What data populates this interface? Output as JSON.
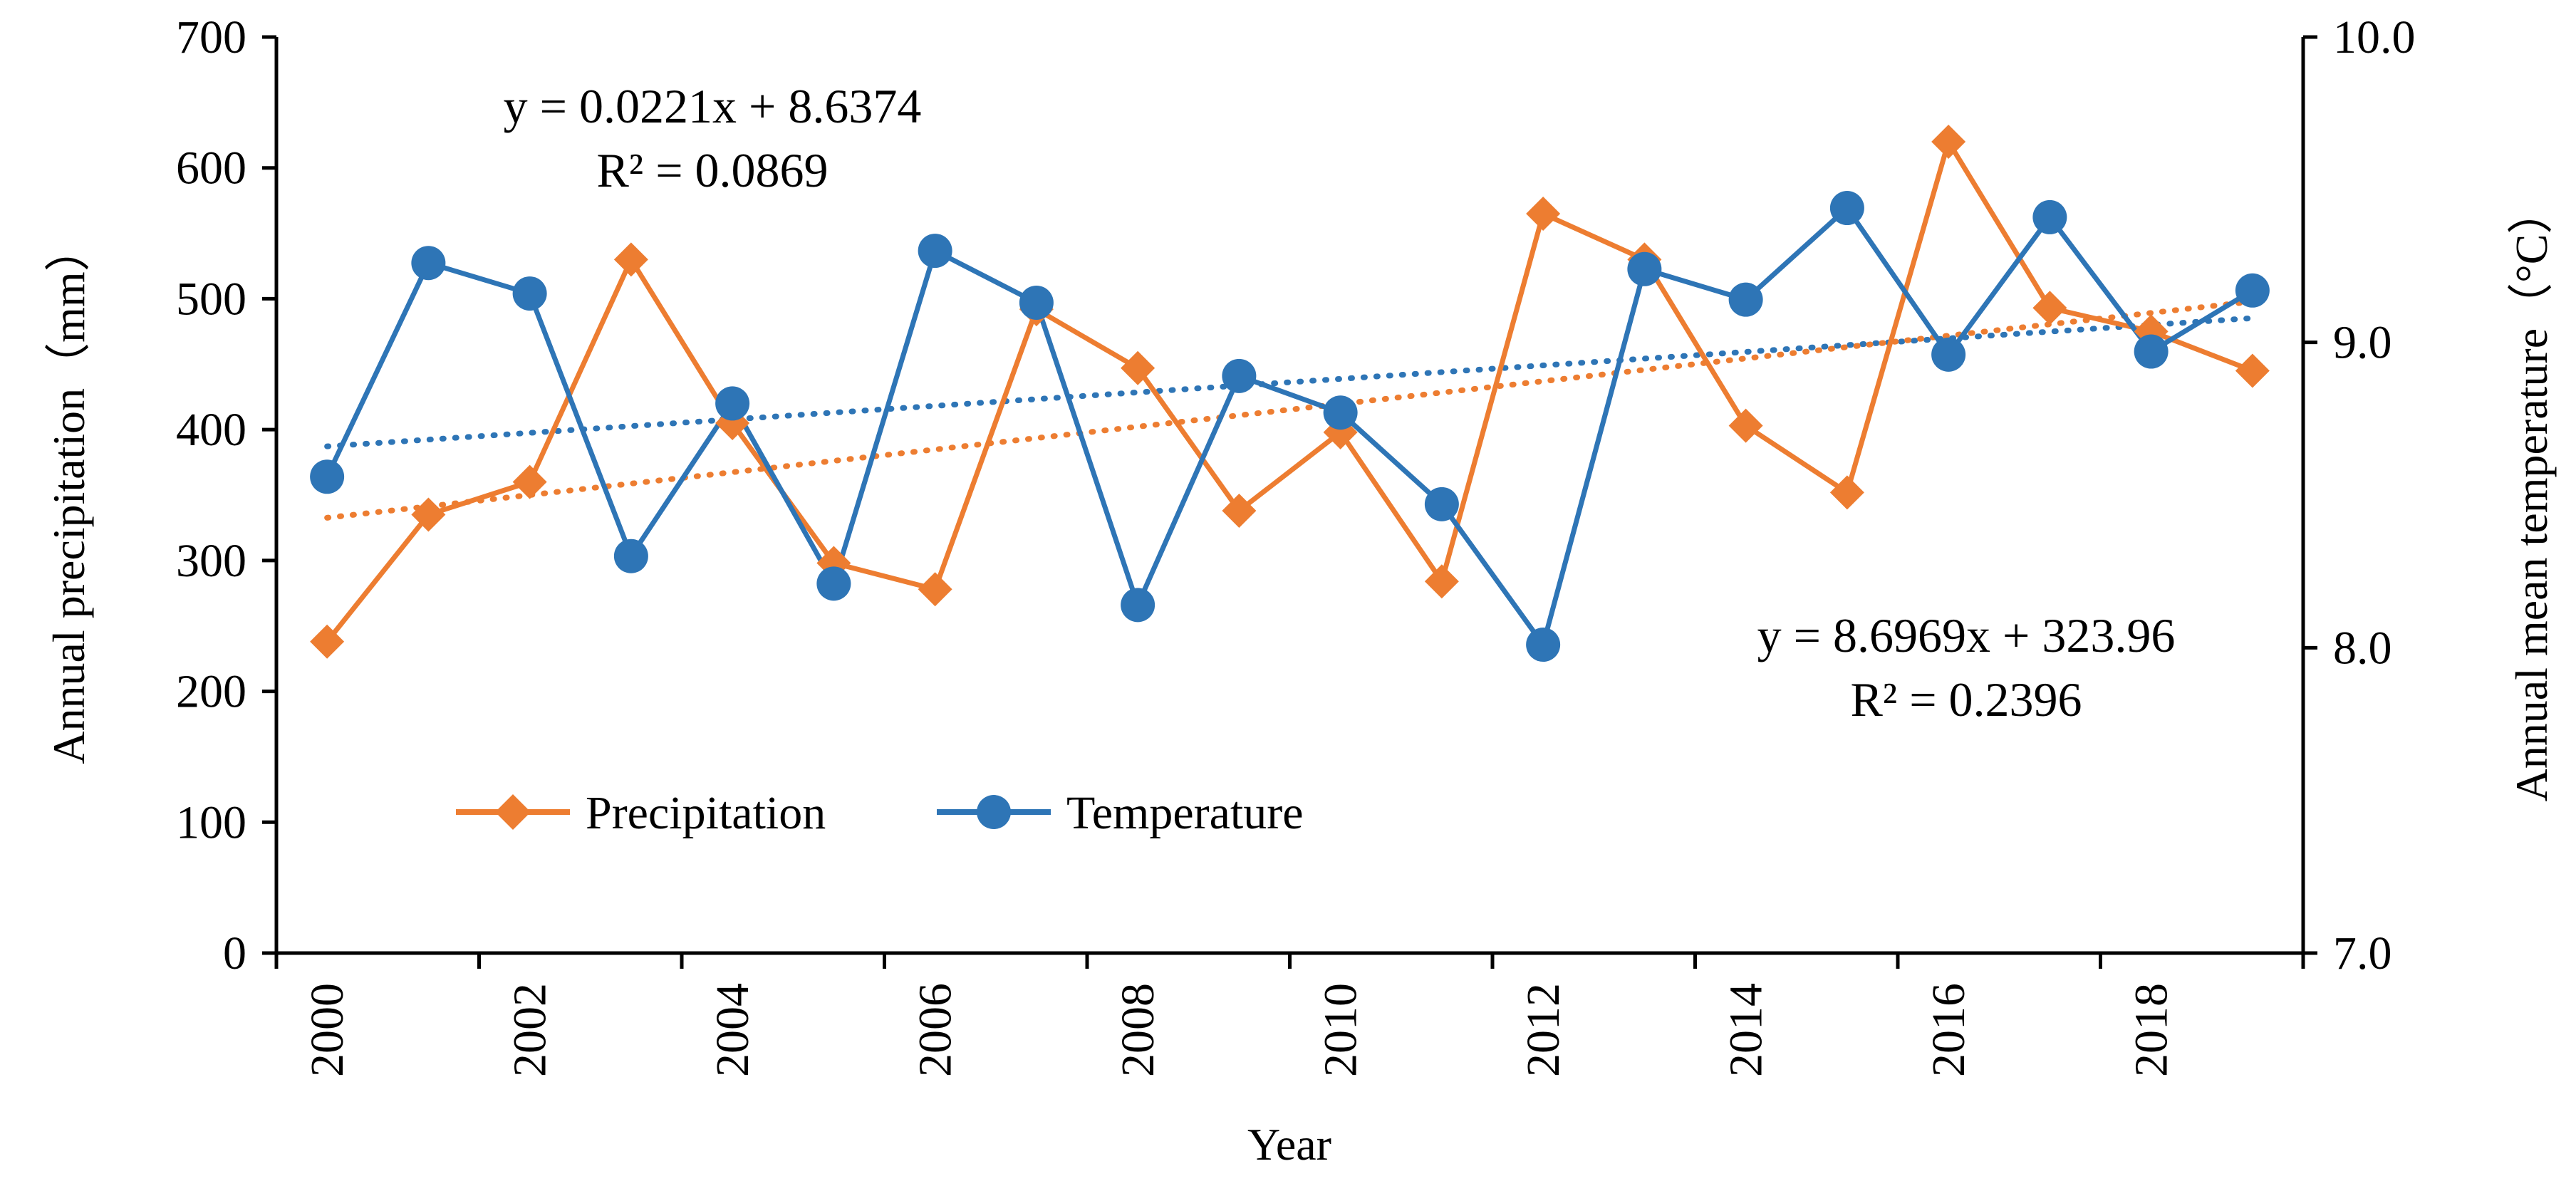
{
  "chart_data": {
    "type": "line",
    "title": "",
    "xlabel": "Year",
    "ylabel_left": "Annual precipitation（mm）",
    "ylabel_right": "Annual mean temperature（°C）",
    "x_ticks": [
      "2000",
      "2002",
      "2004",
      "2006",
      "2008",
      "2010",
      "2012",
      "2014",
      "2016",
      "2018"
    ],
    "left_ticks": [
      "0",
      "100",
      "200",
      "300",
      "400",
      "500",
      "600",
      "700"
    ],
    "right_ticks": [
      "7.0",
      "8.0",
      "9.0",
      "10.0"
    ],
    "ylim_left": [
      0,
      700
    ],
    "ylim_right": [
      7.0,
      10.0
    ],
    "xlim": [
      1999.5,
      2019.5
    ],
    "grid": false,
    "legend_position": "bottom-left",
    "series": [
      {
        "name": "Precipitation",
        "axis": "left",
        "color": "#ED7D31",
        "marker": "diamond",
        "x": [
          2000,
          2001,
          2002,
          2003,
          2004,
          2005,
          2006,
          2007,
          2008,
          2009,
          2010,
          2011,
          2012,
          2013,
          2014,
          2015,
          2016,
          2017,
          2018,
          2019
        ],
        "values": [
          238,
          335,
          360,
          530,
          405,
          298,
          278,
          492,
          447,
          338,
          398,
          284,
          565,
          530,
          403,
          352,
          620,
          493,
          475,
          445
        ]
      },
      {
        "name": "Temperature",
        "axis": "right",
        "color": "#2E75B6",
        "marker": "circle",
        "x": [
          2000,
          2001,
          2002,
          2003,
          2004,
          2005,
          2006,
          2007,
          2008,
          2009,
          2010,
          2011,
          2012,
          2013,
          2014,
          2015,
          2016,
          2017,
          2018,
          2019
        ],
        "values": [
          8.56,
          9.26,
          9.16,
          8.3,
          8.8,
          8.21,
          9.3,
          9.13,
          8.14,
          8.89,
          8.77,
          8.47,
          8.01,
          9.24,
          9.14,
          9.44,
          8.96,
          9.41,
          8.97,
          9.17
        ]
      }
    ],
    "trendlines": [
      {
        "series": "Temperature",
        "axis": "right",
        "color": "#2E75B6",
        "slope": 0.0221,
        "intercept": 8.6374
      },
      {
        "series": "Precipitation",
        "axis": "left",
        "color": "#ED7D31",
        "slope": 8.6969,
        "intercept": 323.96
      }
    ],
    "annotations": {
      "temperature_equation": "y = 0.0221x + 8.6374",
      "temperature_r2": "R² = 0.0869",
      "precipitation_equation": "y = 8.6969x + 323.96",
      "precipitation_r2": "R² = 0.2396"
    }
  }
}
